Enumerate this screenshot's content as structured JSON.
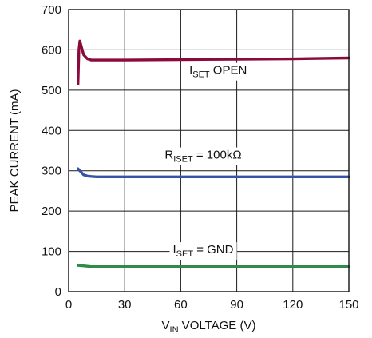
{
  "chart_data": {
    "type": "line",
    "xlabel": "VIN VOLTAGE (V)",
    "xlabel_parts": {
      "main": "V",
      "sub": "IN",
      "rest": " VOLTAGE (V)"
    },
    "ylabel": "PEAK CURRENT (mA)",
    "xlim": [
      0,
      150
    ],
    "ylim": [
      0,
      700
    ],
    "xticks": [
      0,
      30,
      60,
      90,
      120,
      150
    ],
    "yticks": [
      0,
      100,
      200,
      300,
      400,
      500,
      600,
      700
    ],
    "grid": true,
    "series": [
      {
        "name": "ISET OPEN",
        "color": "#8b0a3c",
        "x": [
          5,
          5.5,
          6,
          7,
          8,
          10,
          12,
          15,
          20,
          30,
          60,
          90,
          120,
          150
        ],
        "y": [
          515,
          600,
          622,
          605,
          588,
          578,
          575,
          575,
          575,
          575,
          576,
          577,
          578,
          580
        ]
      },
      {
        "name": "RISET = 100kΩ",
        "color": "#3653a5",
        "x": [
          5,
          6,
          8,
          10,
          12,
          15,
          20,
          30,
          60,
          90,
          120,
          150
        ],
        "y": [
          305,
          300,
          290,
          287,
          286,
          285,
          285,
          285,
          285,
          285,
          285,
          285
        ]
      },
      {
        "name": "ISET = GND",
        "color": "#2e8b4a",
        "x": [
          5,
          8,
          10,
          12,
          15,
          20,
          30,
          60,
          90,
          120,
          150
        ],
        "y": [
          65,
          64,
          63,
          62,
          62,
          62,
          62,
          62,
          62,
          62,
          62
        ]
      }
    ],
    "annotations": [
      {
        "series": 0,
        "main": "I",
        "sub": "SET",
        "rest": " OPEN",
        "x": 80,
        "y": 540
      },
      {
        "series": 1,
        "main": "R",
        "sub": "ISET",
        "rest": " = 100kΩ",
        "x": 72,
        "y": 330
      },
      {
        "series": 2,
        "main": "I",
        "sub": "SET",
        "rest": " = GND",
        "x": 72,
        "y": 95
      }
    ]
  }
}
